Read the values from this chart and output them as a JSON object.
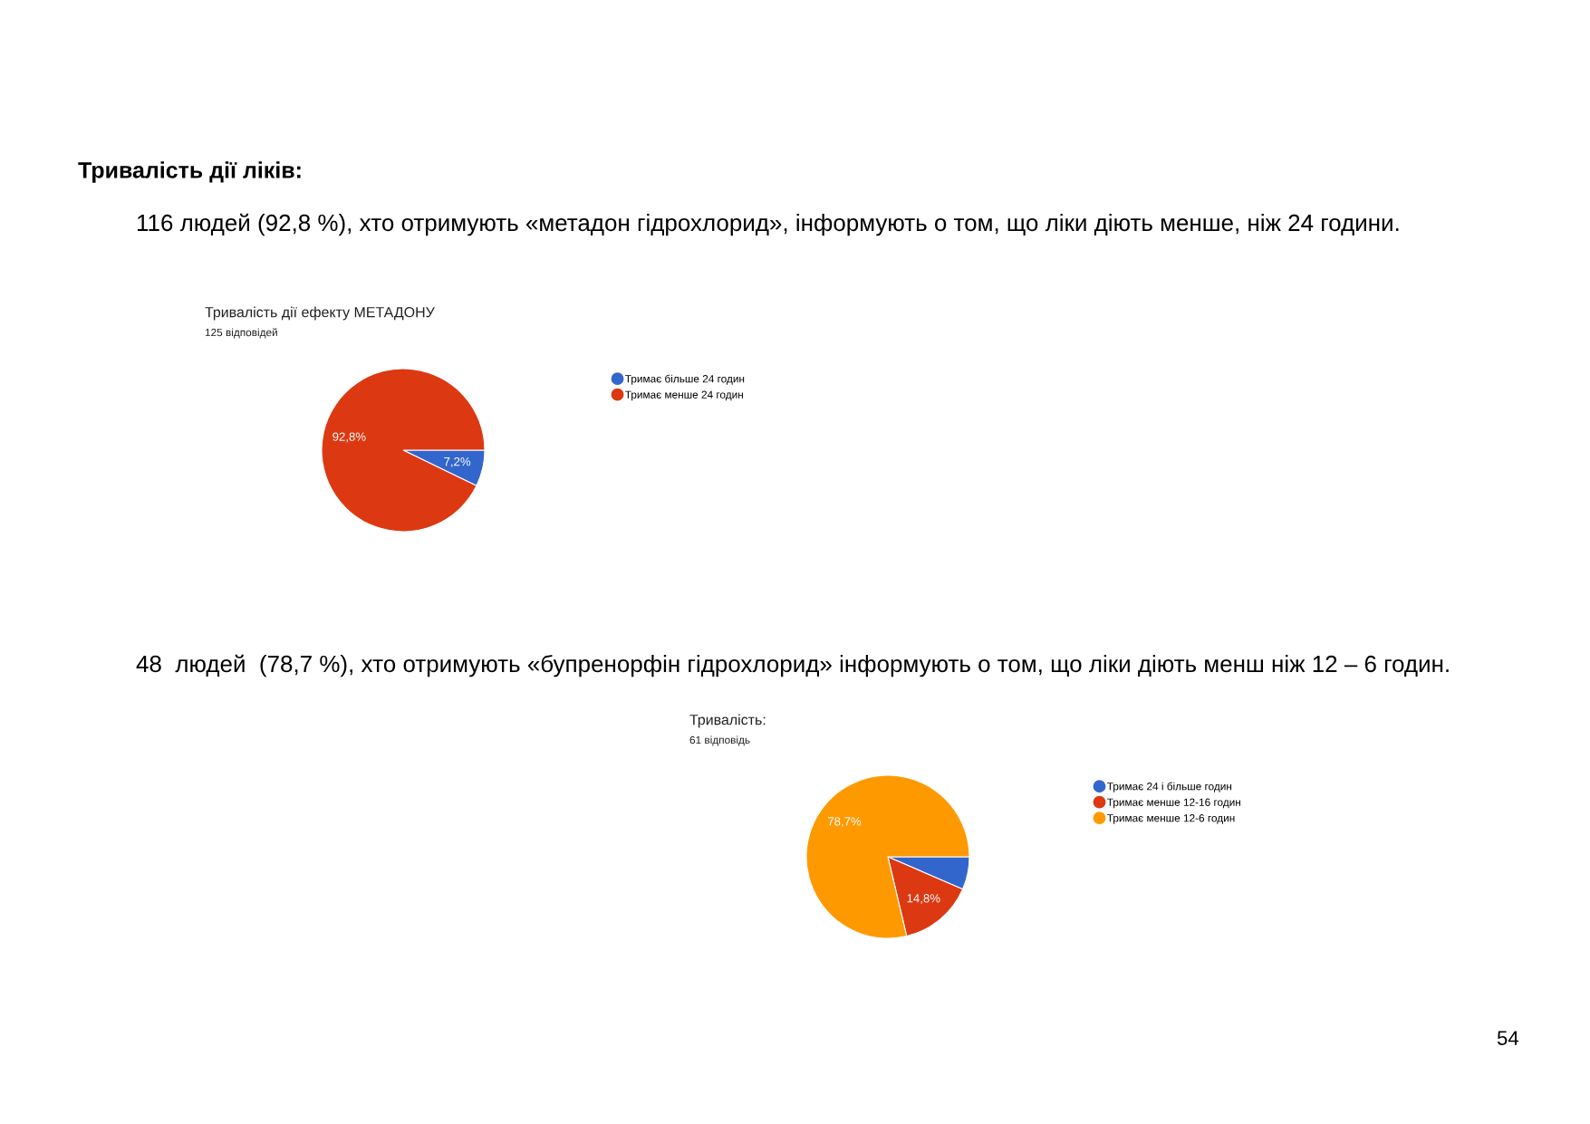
{
  "chart_data": [
    {
      "type": "pie",
      "title": "Тривалість дії ефекту МЕТАДОНУ",
      "subtitle": "125 відповідей",
      "categories": [
        "Тримає більше 24 годин",
        "Тримає менше 24 годин"
      ],
      "values": [
        7.2,
        92.8
      ],
      "colors": [
        "#3366cc",
        "#dc3912"
      ],
      "value_labels": [
        "7,2%",
        "92,8%"
      ],
      "legend": "right",
      "annotations": [
        "Тривалість дії ліків:",
        "116 людей (92,8 %), хто отримують «метадон гідрохлорид», інформують о том, що ліки діють менше, ніж 24 години."
      ]
    },
    {
      "type": "pie",
      "title": "Тривалість:",
      "subtitle": "61 відповідь",
      "categories": [
        "Тримає 24 і більше годин",
        "Тримає менше 12-16 годин",
        "Тримає менше 12-6 годин"
      ],
      "values": [
        6.5,
        14.8,
        78.7
      ],
      "colors": [
        "#3366cc",
        "#dc3912",
        "#ff9900"
      ],
      "value_labels": [
        null,
        "14,8%",
        "78,7%"
      ],
      "legend": "right",
      "annotations": [
        "48  людей  (78,7 %), хто отримують «бупренорфін гідрохлорид» інформують о том, що ліки діють менш ніж 12 – 6 годин.",
        "54"
      ]
    }
  ]
}
